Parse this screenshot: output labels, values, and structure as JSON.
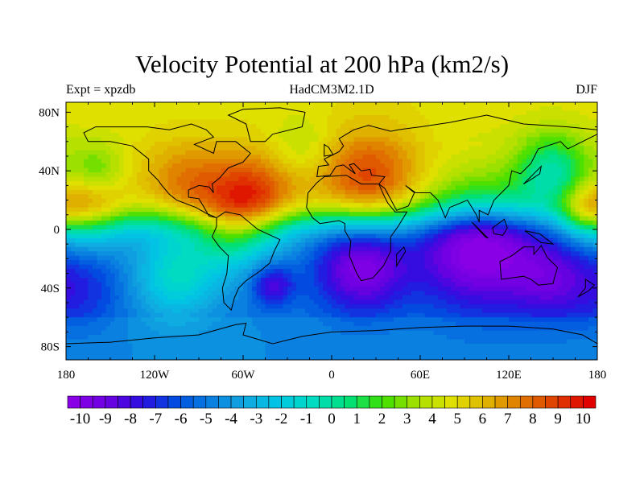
{
  "chart_data": {
    "type": "heatmap",
    "title": "Velocity Potential at 200 hPa (km2/s)",
    "left_subtitle": "Expt = xpzdb",
    "center_subtitle": "HadCM3M2.1D",
    "right_subtitle": "DJF",
    "lon_ticks": [
      "180",
      "120W",
      "60W",
      "0",
      "60E",
      "120E",
      "180"
    ],
    "lon_values": [
      -180,
      -120,
      -60,
      0,
      60,
      120,
      180
    ],
    "lat_ticks": [
      "80N",
      "40N",
      "0",
      "40S",
      "80S"
    ],
    "lat_values": [
      80,
      40,
      0,
      -40,
      -80
    ],
    "colorbar_labels": [
      "-10",
      "-9",
      "-8",
      "-7",
      "-6",
      "-5",
      "-4",
      "-3",
      "-2",
      "-1",
      "0",
      "1",
      "2",
      "3",
      "4",
      "5",
      "6",
      "7",
      "8",
      "9",
      "10"
    ],
    "levels": {
      "min": -10,
      "max": 10,
      "step": 0.5
    },
    "palette_anchors": [
      "#8a00e6",
      "#6a00e0",
      "#2a10e0",
      "#0050e0",
      "#0a80e0",
      "#10a8e0",
      "#00c8e4",
      "#00dcc0",
      "#00e078",
      "#40e000",
      "#a8e000",
      "#e0e000",
      "#e0b400",
      "#e07800",
      "#e04000",
      "#e00000"
    ],
    "field_base": {
      "north": 5,
      "south": -5
    },
    "field_features": [
      {
        "lon": -55,
        "lat": 18,
        "value": 5,
        "r": 22
      },
      {
        "lon": 25,
        "lat": 32,
        "value": 4,
        "r": 25
      },
      {
        "lon": -165,
        "lat": 12,
        "value": 4,
        "r": 18
      },
      {
        "lon": -100,
        "lat": 30,
        "value": 2.5,
        "r": 20
      },
      {
        "lon": 150,
        "lat": 40,
        "value": -5,
        "r": 18
      },
      {
        "lon": -160,
        "lat": 40,
        "value": -3,
        "r": 14
      },
      {
        "lon": 170,
        "lat": 10,
        "value": 3,
        "r": 12
      },
      {
        "lon": -20,
        "lat": 55,
        "value": -1.5,
        "r": 15
      },
      {
        "lon": 100,
        "lat": -10,
        "value": -6,
        "r": 30
      },
      {
        "lon": 20,
        "lat": -25,
        "value": -5,
        "r": 22
      },
      {
        "lon": 150,
        "lat": -35,
        "value": -3,
        "r": 20
      },
      {
        "lon": -105,
        "lat": -32,
        "value": 4,
        "r": 20
      },
      {
        "lon": -40,
        "lat": -38,
        "value": -3.5,
        "r": 10
      },
      {
        "lon": -170,
        "lat": -40,
        "value": -2,
        "r": 20
      },
      {
        "lon": -70,
        "lat": -5,
        "value": 3,
        "r": 18
      }
    ]
  }
}
